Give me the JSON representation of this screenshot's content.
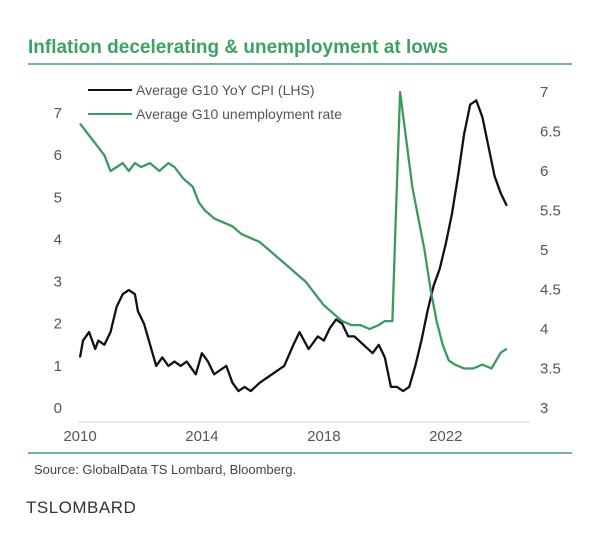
{
  "chart_data": {
    "type": "line",
    "title": "Inflation decelerating & unemployment at lows",
    "xlabel": "",
    "ylabel": "",
    "source": "Source: GlobalData TS Lombard, Bloomberg.",
    "brand": "TSLOMBARD",
    "x_ticks": [
      "2010",
      "2014",
      "2018",
      "2022"
    ],
    "y_left_ticks": [
      "0",
      "1",
      "2",
      "3",
      "4",
      "5",
      "6",
      "7"
    ],
    "y_right_ticks": [
      "3",
      "3.5",
      "4",
      "4.5",
      "5",
      "5.5",
      "6",
      "6.5",
      "7"
    ],
    "ylim_left": [
      0,
      7.6
    ],
    "ylim_right": [
      3,
      7.1
    ],
    "xlim": [
      2010,
      2024.5
    ],
    "legend_placement": "top-left",
    "grid": false,
    "colors": {
      "cpi": "#111111",
      "unemployment": "#3c9a5f",
      "title": "#3fa265"
    },
    "series": [
      {
        "name": "Average G10 YoY CPI (LHS)",
        "axis": "left",
        "x": [
          2010.0,
          2010.1,
          2010.3,
          2010.5,
          2010.6,
          2010.8,
          2011.0,
          2011.2,
          2011.4,
          2011.6,
          2011.8,
          2011.9,
          2012.1,
          2012.3,
          2012.5,
          2012.7,
          2012.9,
          2013.1,
          2013.3,
          2013.5,
          2013.8,
          2014.0,
          2014.2,
          2014.4,
          2014.6,
          2014.8,
          2015.0,
          2015.2,
          2015.4,
          2015.6,
          2015.9,
          2016.1,
          2016.3,
          2016.5,
          2016.7,
          2017.0,
          2017.2,
          2017.5,
          2017.8,
          2018.0,
          2018.2,
          2018.4,
          2018.6,
          2018.8,
          2019.0,
          2019.3,
          2019.6,
          2019.8,
          2020.0,
          2020.2,
          2020.4,
          2020.6,
          2020.8,
          2021.0,
          2021.2,
          2021.4,
          2021.6,
          2021.8,
          2022.0,
          2022.2,
          2022.4,
          2022.6,
          2022.8,
          2023.0,
          2023.2,
          2023.4,
          2023.6,
          2023.8,
          2024.0
        ],
        "values": [
          1.2,
          1.6,
          1.8,
          1.4,
          1.6,
          1.5,
          1.8,
          2.4,
          2.7,
          2.8,
          2.7,
          2.3,
          2.0,
          1.5,
          1.0,
          1.2,
          1.0,
          1.1,
          1.0,
          1.1,
          0.8,
          1.3,
          1.1,
          0.8,
          0.9,
          1.0,
          0.6,
          0.4,
          0.5,
          0.4,
          0.6,
          0.7,
          0.8,
          0.9,
          1.0,
          1.5,
          1.8,
          1.4,
          1.7,
          1.6,
          1.9,
          2.1,
          2.0,
          1.7,
          1.7,
          1.5,
          1.3,
          1.5,
          1.2,
          0.5,
          0.5,
          0.4,
          0.5,
          1.0,
          1.6,
          2.3,
          2.9,
          3.3,
          3.9,
          4.6,
          5.5,
          6.5,
          7.2,
          7.3,
          6.9,
          6.2,
          5.5,
          5.1,
          4.8
        ]
      },
      {
        "name": "Average G10 unemployment rate",
        "axis": "right",
        "x": [
          2010.0,
          2010.2,
          2010.4,
          2010.6,
          2010.8,
          2011.0,
          2011.2,
          2011.4,
          2011.6,
          2011.8,
          2012.0,
          2012.3,
          2012.6,
          2012.9,
          2013.1,
          2013.4,
          2013.7,
          2013.9,
          2014.1,
          2014.4,
          2014.7,
          2015.0,
          2015.3,
          2015.6,
          2015.9,
          2016.2,
          2016.5,
          2016.8,
          2017.1,
          2017.4,
          2017.7,
          2018.0,
          2018.3,
          2018.6,
          2018.9,
          2019.2,
          2019.5,
          2019.8,
          2020.0,
          2020.1,
          2020.25,
          2020.35,
          2020.5,
          2020.7,
          2020.9,
          2021.1,
          2021.3,
          2021.5,
          2021.7,
          2021.9,
          2022.1,
          2022.3,
          2022.6,
          2022.9,
          2023.2,
          2023.5,
          2023.8,
          2024.0
        ],
        "values": [
          6.6,
          6.5,
          6.4,
          6.3,
          6.2,
          6.0,
          6.05,
          6.1,
          6.0,
          6.1,
          6.05,
          6.1,
          6.0,
          6.1,
          6.05,
          5.9,
          5.8,
          5.6,
          5.5,
          5.4,
          5.35,
          5.3,
          5.2,
          5.15,
          5.1,
          5.0,
          4.9,
          4.8,
          4.7,
          4.6,
          4.45,
          4.3,
          4.2,
          4.1,
          4.05,
          4.05,
          4.0,
          4.05,
          4.1,
          4.1,
          4.1,
          5.3,
          7.0,
          6.4,
          5.8,
          5.4,
          5.0,
          4.5,
          4.1,
          3.8,
          3.6,
          3.55,
          3.5,
          3.5,
          3.55,
          3.5,
          3.7,
          3.75
        ]
      }
    ]
  }
}
